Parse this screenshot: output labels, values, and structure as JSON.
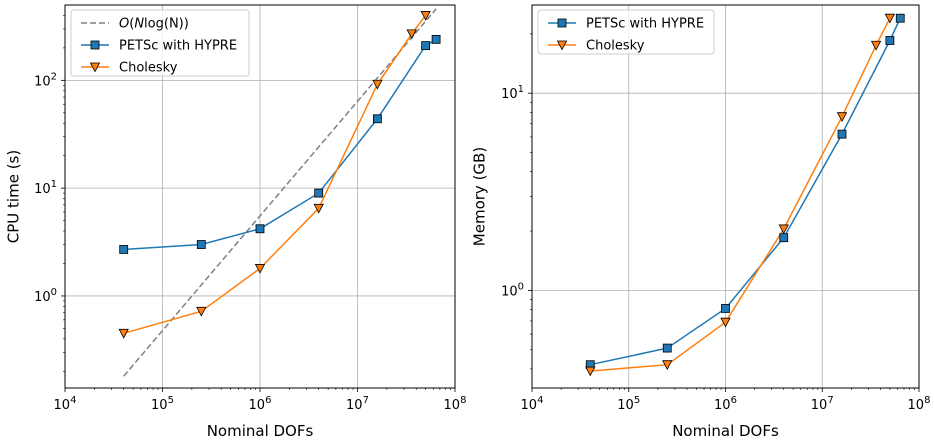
{
  "chart_data": [
    {
      "type": "line",
      "xlabel": "Nominal DOFs",
      "ylabel": "CPU time (s)",
      "xscale": "log",
      "yscale": "log",
      "xlim": [
        10000,
        100000000
      ],
      "ylim": [
        0.14,
        500
      ],
      "xticks": [
        {
          "value": 10000,
          "base": "10",
          "exp": "4"
        },
        {
          "value": 100000,
          "base": "10",
          "exp": "5"
        },
        {
          "value": 1000000,
          "base": "10",
          "exp": "6"
        },
        {
          "value": 10000000,
          "base": "10",
          "exp": "7"
        },
        {
          "value": 100000000,
          "base": "10",
          "exp": "8"
        }
      ],
      "yticks": [
        {
          "value": 1,
          "base": "10",
          "exp": "0"
        },
        {
          "value": 10,
          "base": "10",
          "exp": "1"
        },
        {
          "value": 100,
          "base": "10",
          "exp": "2"
        }
      ],
      "grid": true,
      "legend_position": "top-left",
      "series": [
        {
          "name": "O(Nlog(N))",
          "legend_parts": {
            "o": "O",
            "open": "(",
            "n": "N",
            "log": "log",
            "inner": "(N))"
          },
          "style": "dashed",
          "color": "#808080",
          "marker": "none",
          "x": [
            40000,
            64000000
          ],
          "y": [
            0.18,
            460
          ]
        },
        {
          "name": "PETSc with HYPRE",
          "style": "solid",
          "color": "#1f77b4",
          "marker": "square",
          "x": [
            40000,
            250000,
            1000000,
            4000000,
            16000000,
            50000000,
            64000000
          ],
          "y": [
            2.7,
            3.0,
            4.2,
            9.0,
            44,
            210,
            240
          ]
        },
        {
          "name": "Cholesky",
          "style": "solid",
          "color": "#ff7f0e",
          "marker": "triangle-down",
          "x": [
            40000,
            250000,
            1000000,
            4000000,
            16000000,
            36000000,
            50000000
          ],
          "y": [
            0.45,
            0.72,
            1.8,
            6.5,
            92,
            270,
            400
          ]
        }
      ]
    },
    {
      "type": "line",
      "xlabel": "Nominal DOFs",
      "ylabel": "Memory (GB)",
      "xscale": "log",
      "yscale": "log",
      "xlim": [
        10000,
        100000000
      ],
      "ylim": [
        0.32,
        28
      ],
      "xticks": [
        {
          "value": 10000,
          "base": "10",
          "exp": "4"
        },
        {
          "value": 100000,
          "base": "10",
          "exp": "5"
        },
        {
          "value": 1000000,
          "base": "10",
          "exp": "6"
        },
        {
          "value": 10000000,
          "base": "10",
          "exp": "7"
        },
        {
          "value": 100000000,
          "base": "10",
          "exp": "8"
        }
      ],
      "yticks": [
        {
          "value": 1,
          "base": "10",
          "exp": "0"
        },
        {
          "value": 10,
          "base": "10",
          "exp": "1"
        }
      ],
      "grid": true,
      "legend_position": "top-left",
      "series": [
        {
          "name": "PETSc with HYPRE",
          "style": "solid",
          "color": "#1f77b4",
          "marker": "square",
          "x": [
            40000,
            250000,
            1000000,
            4000000,
            16000000,
            50000000,
            64000000
          ],
          "y": [
            0.42,
            0.51,
            0.81,
            1.85,
            6.2,
            18.5,
            24
          ]
        },
        {
          "name": "Cholesky",
          "style": "solid",
          "color": "#ff7f0e",
          "marker": "triangle-down",
          "x": [
            40000,
            250000,
            1000000,
            4000000,
            16000000,
            36000000,
            50000000
          ],
          "y": [
            0.39,
            0.42,
            0.69,
            2.05,
            7.6,
            17.5,
            24
          ]
        }
      ]
    }
  ]
}
